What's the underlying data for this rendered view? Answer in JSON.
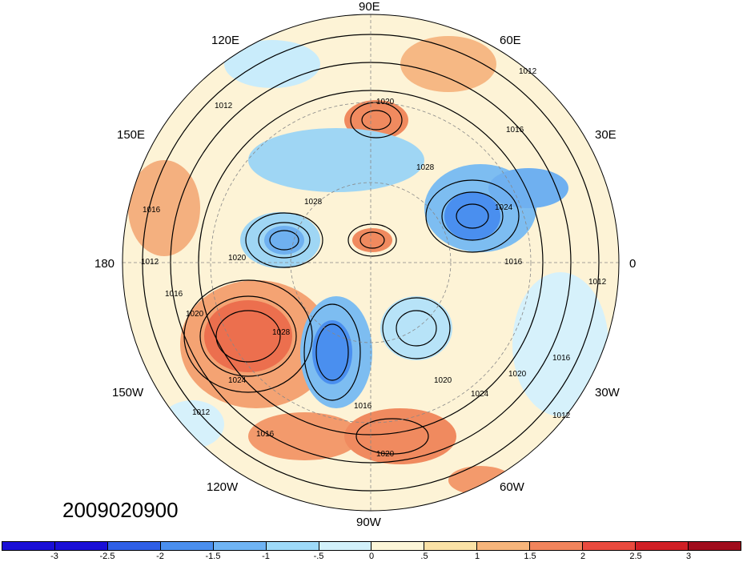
{
  "map": {
    "date_stamp": "2009020900",
    "lon_labels": {
      "n90e": "90E",
      "n120e": "120E",
      "n60e": "60E",
      "n150e": "150E",
      "n30e": "30E",
      "n180": "180",
      "n0": "0",
      "n150w": "150W",
      "n30w": "30W",
      "n120w": "120W",
      "n60w": "60W",
      "n90w": "90W"
    },
    "contour_labels": [
      "1012",
      "1020",
      "1016",
      "1028",
      "1024",
      "1012",
      "1016",
      "1020",
      "1028",
      "1024",
      "1016",
      "1020",
      "1012",
      "1012",
      "1016",
      "1016",
      "1020",
      "1012",
      "1016",
      "1020",
      "1024",
      "1016",
      "1012",
      "1020",
      "1028"
    ],
    "colorbar": {
      "colors": [
        "#1a0fd6",
        "#2f5fe6",
        "#4a8fef",
        "#6fb4f4",
        "#9edaf9",
        "#d2f1fb",
        "#fdf6d8",
        "#fbe2a6",
        "#f7b57b",
        "#f1845c",
        "#e94a3e",
        "#d01f25",
        "#a00c1c"
      ],
      "labels": [
        "-3",
        "-2.5",
        "-2",
        "-1.5",
        "-1",
        "-.5",
        "0",
        ".5",
        "1",
        "1.5",
        "2",
        "2.5",
        "3"
      ]
    }
  }
}
